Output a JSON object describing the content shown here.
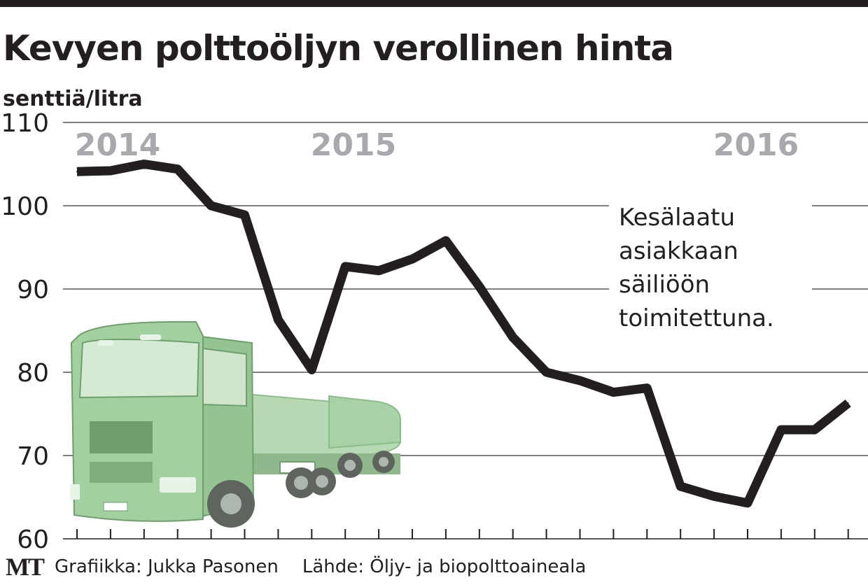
{
  "chart_data": {
    "type": "line",
    "title": "Kevyen polttoöljyn verollinen hinta",
    "ylabel": "senttiä/litra",
    "ylim": [
      60,
      110
    ],
    "yticks": [
      60,
      70,
      80,
      90,
      100,
      110
    ],
    "year_labels": [
      "2014",
      "2015",
      "2016"
    ],
    "annotation": [
      "Kesälaatu",
      "asiakkaan",
      "säiliöön",
      "toimitettuna."
    ],
    "series": [
      {
        "values": [
          104.1,
          104.2,
          105.0,
          104.4,
          100.0,
          98.9,
          86.3,
          80.3,
          92.7,
          92.2,
          93.6,
          95.8,
          90.3,
          84.2,
          80.0,
          79.0,
          77.6,
          78.1,
          66.3,
          65.1,
          64.3,
          73.1,
          73.1,
          76.3
        ]
      }
    ],
    "grid": true,
    "colors": {
      "line": "#231f20",
      "grid": "#555555",
      "year_label": "#a7a9ac",
      "truck": "#9ecb9c"
    }
  },
  "footer": {
    "logo": "MT",
    "credit": "Grafiikka: Jukka Pasonen",
    "source": "Lähde: Öljy- ja biopolttoaineala"
  }
}
